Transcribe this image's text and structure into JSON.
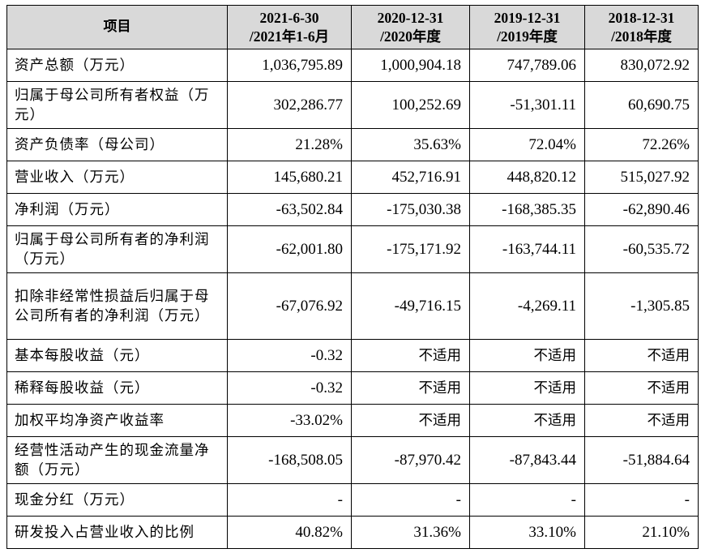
{
  "table": {
    "header": {
      "item": "项目",
      "periods": [
        {
          "date": "2021-6-30",
          "period": "/2021年1-6月"
        },
        {
          "date": "2020-12-31",
          "period": "/2020年度"
        },
        {
          "date": "2019-12-31",
          "period": "/2019年度"
        },
        {
          "date": "2018-12-31",
          "period": "/2018年度"
        }
      ]
    },
    "rows": [
      {
        "label": "资产总额（万元）",
        "values": [
          "1,036,795.89",
          "1,000,904.18",
          "747,789.06",
          "830,072.92"
        ]
      },
      {
        "label": "归属于母公司所有者权益（万元）",
        "values": [
          "302,286.77",
          "100,252.69",
          "-51,301.11",
          "60,690.75"
        ]
      },
      {
        "label": "资产负债率（母公司）",
        "values": [
          "21.28%",
          "35.63%",
          "72.04%",
          "72.26%"
        ]
      },
      {
        "label": "营业收入（万元）",
        "values": [
          "145,680.21",
          "452,716.91",
          "448,820.12",
          "515,027.92"
        ]
      },
      {
        "label": "净利润（万元）",
        "values": [
          "-63,502.84",
          "-175,030.38",
          "-168,385.35",
          "-62,890.46"
        ]
      },
      {
        "label": "归属于母公司所有者的净利润（万元）",
        "values": [
          "-62,001.80",
          "-175,171.92",
          "-163,744.11",
          "-60,535.72"
        ]
      },
      {
        "label": "扣除非经常性损益后归属于母公司所有者的净利润（万元）",
        "values": [
          "-67,076.92",
          "-49,716.15",
          "-4,269.11",
          "-1,305.85"
        ]
      },
      {
        "label": "基本每股收益（元）",
        "values": [
          "-0.32",
          "不适用",
          "不适用",
          "不适用"
        ]
      },
      {
        "label": "稀释每股收益（元）",
        "values": [
          "-0.32",
          "不适用",
          "不适用",
          "不适用"
        ]
      },
      {
        "label": "加权平均净资产收益率",
        "values": [
          "-33.02%",
          "不适用",
          "不适用",
          "不适用"
        ]
      },
      {
        "label": "经营性活动产生的现金流量净额（万元）",
        "values": [
          "-168,508.05",
          "-87,970.42",
          "-87,843.44",
          "-51,884.64"
        ]
      },
      {
        "label": "现金分红（万元）",
        "values": [
          "-",
          "-",
          "-",
          "-"
        ]
      },
      {
        "label": "研发投入占营业收入的比例",
        "values": [
          "40.82%",
          "31.36%",
          "33.10%",
          "21.10%"
        ]
      }
    ]
  }
}
